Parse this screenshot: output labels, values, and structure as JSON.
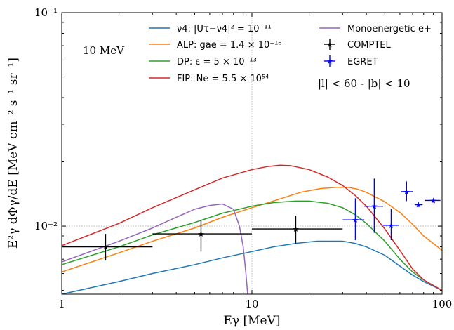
{
  "chart_data": {
    "type": "line",
    "title": "",
    "xlabel": "Eγ [MeV]",
    "ylabel": "E²γ dΦγ/dE [MeV cm⁻² s⁻¹ sr⁻¹]",
    "x_scale": "log",
    "y_scale": "log",
    "xlim": [
      1,
      100
    ],
    "ylim": [
      0.0048,
      0.1
    ],
    "grid": "dotted at x=10 and y=0.01",
    "legend_placement": "top",
    "x_ticks": [
      {
        "value": 1,
        "label": "1"
      },
      {
        "value": 10,
        "label": "10"
      },
      {
        "value": 100,
        "label": "100"
      }
    ],
    "y_ticks": [
      {
        "value": 0.01,
        "label": "10⁻²"
      },
      {
        "value": 0.1,
        "label": "10⁻¹"
      }
    ],
    "annotations": [
      {
        "text": "10 MeV",
        "position": "top-left"
      },
      {
        "text": "|l| < 60 - |b| < 10",
        "position": "top-right"
      }
    ],
    "series": [
      {
        "name": "ν4: |Uτ−ν4|² = 10⁻¹¹",
        "color": "#1f77b4",
        "x": [
          1,
          2,
          3,
          5,
          7,
          10,
          13,
          17,
          22,
          26,
          30,
          35,
          40,
          50,
          60,
          70,
          80,
          100
        ],
        "y": [
          0.0048,
          0.0055,
          0.006,
          0.0066,
          0.0071,
          0.0076,
          0.008,
          0.0083,
          0.0085,
          0.0085,
          0.0085,
          0.0083,
          0.008,
          0.0073,
          0.0065,
          0.0059,
          0.0055,
          0.005
        ]
      },
      {
        "name": "ALP: gae = 1.4 × 10⁻¹⁶",
        "color": "#ff7f0e",
        "x": [
          1,
          2,
          3,
          5,
          7,
          10,
          14,
          18,
          23,
          28,
          32,
          36,
          40,
          50,
          60,
          70,
          80,
          100
        ],
        "y": [
          0.0061,
          0.0075,
          0.0085,
          0.0098,
          0.011,
          0.0122,
          0.0134,
          0.0144,
          0.015,
          0.0152,
          0.0152,
          0.0149,
          0.0144,
          0.013,
          0.0116,
          0.0102,
          0.009,
          0.0077
        ]
      },
      {
        "name": "DP: ε = 5 × 10⁻¹³",
        "color": "#2ca02c",
        "x": [
          1,
          2,
          3,
          5,
          7,
          10,
          13,
          17,
          20,
          25,
          30,
          35,
          40,
          50,
          60,
          70,
          80,
          100
        ],
        "y": [
          0.0066,
          0.008,
          0.0091,
          0.0104,
          0.0115,
          0.0124,
          0.0129,
          0.0131,
          0.0131,
          0.0128,
          0.0122,
          0.0113,
          0.0103,
          0.0085,
          0.007,
          0.0061,
          0.0056,
          0.005
        ]
      },
      {
        "name": "FIP: Ne = 5.5 × 10⁵⁴",
        "color": "#d62728",
        "x": [
          1,
          2,
          3,
          5,
          7,
          10,
          12,
          14,
          16,
          20,
          25,
          30,
          35,
          40,
          50,
          60,
          70,
          80,
          100
        ],
        "y": [
          0.0081,
          0.0103,
          0.0122,
          0.0148,
          0.0168,
          0.0184,
          0.019,
          0.0193,
          0.0192,
          0.0184,
          0.017,
          0.0155,
          0.0139,
          0.0124,
          0.0097,
          0.0077,
          0.0063,
          0.0056,
          0.005
        ]
      },
      {
        "name": "Monoenergetic e+",
        "color": "#9467bd",
        "x": [
          1,
          2,
          3,
          4,
          5,
          6,
          7,
          8,
          8.6,
          9,
          9.3,
          9.5
        ],
        "y": [
          0.0068,
          0.0085,
          0.0098,
          0.011,
          0.012,
          0.0125,
          0.0127,
          0.012,
          0.01,
          0.008,
          0.006,
          0.0048
        ]
      }
    ],
    "errorbars": [
      {
        "name": "COMPTEL",
        "color": "#000000",
        "points": [
          {
            "x": 1.7,
            "x_low": 1,
            "x_high": 3,
            "y": 0.008,
            "y_low": 0.0069,
            "y_high": 0.0092
          },
          {
            "x": 5.4,
            "x_low": 3,
            "x_high": 10,
            "y": 0.0092,
            "y_low": 0.0076,
            "y_high": 0.0107
          },
          {
            "x": 17,
            "x_low": 10,
            "x_high": 30,
            "y": 0.0097,
            "y_low": 0.0083,
            "y_high": 0.0112
          }
        ]
      },
      {
        "name": "EGRET",
        "color": "#0000ff",
        "points": [
          {
            "x": 35,
            "x_low": 30,
            "x_high": 39,
            "y": 0.0107,
            "y_low": 0.0086,
            "y_high": 0.0135
          },
          {
            "x": 44,
            "x_low": 39,
            "x_high": 49,
            "y": 0.0124,
            "y_low": 0.0093,
            "y_high": 0.0167
          },
          {
            "x": 54,
            "x_low": 49,
            "x_high": 59,
            "y": 0.0101,
            "y_low": 0.0086,
            "y_high": 0.012
          },
          {
            "x": 65,
            "x_low": 61,
            "x_high": 70,
            "y": 0.0145,
            "y_low": 0.0131,
            "y_high": 0.0162
          },
          {
            "x": 75,
            "x_low": 72,
            "x_high": 79,
            "y": 0.0126,
            "y_low": 0.0123,
            "y_high": 0.013
          },
          {
            "x": 90,
            "x_low": 81,
            "x_high": 98,
            "y": 0.0132,
            "y_low": 0.0129,
            "y_high": 0.0135
          }
        ]
      }
    ]
  }
}
